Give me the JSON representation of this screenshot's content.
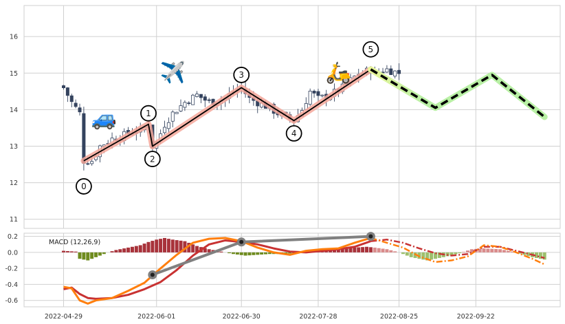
{
  "chart_data": [
    {
      "type": "candlestick",
      "panel": "price",
      "ylim": [
        10.75,
        16.85
      ],
      "y_ticks": [
        11,
        12,
        13,
        14,
        15,
        16
      ],
      "x_tick_labels": [
        "2022-04-29",
        "2022-06-01",
        "2022-06-30",
        "2022-07-28",
        "2022-08-25",
        "2022-09-22"
      ],
      "x_tick_indices": [
        0,
        23,
        44,
        63,
        83,
        102
      ],
      "candles_count": 84,
      "candle_close_anchors": [
        [
          0,
          14.6
        ],
        [
          2,
          14.2
        ],
        [
          4,
          13.9
        ],
        [
          5,
          12.6
        ],
        [
          7,
          12.6
        ],
        [
          9,
          13.0
        ],
        [
          12,
          13.2
        ],
        [
          15,
          13.3
        ],
        [
          17,
          13.4
        ],
        [
          19,
          13.4
        ],
        [
          21,
          13.6
        ],
        [
          22,
          13.0
        ],
        [
          23,
          13.1
        ],
        [
          25,
          13.6
        ],
        [
          27,
          13.9
        ],
        [
          30,
          14.2
        ],
        [
          33,
          14.4
        ],
        [
          36,
          14.2
        ],
        [
          40,
          14.3
        ],
        [
          42,
          14.5
        ],
        [
          44,
          14.6
        ],
        [
          46,
          14.3
        ],
        [
          50,
          14.1
        ],
        [
          53,
          13.9
        ],
        [
          55,
          13.8
        ],
        [
          57,
          13.7
        ],
        [
          59,
          14.0
        ],
        [
          61,
          14.5
        ],
        [
          63,
          14.3
        ],
        [
          66,
          14.4
        ],
        [
          69,
          14.6
        ],
        [
          72,
          14.9
        ],
        [
          74,
          15.0
        ],
        [
          76,
          15.1
        ],
        [
          77,
          15.0
        ],
        [
          80,
          15.1
        ],
        [
          83,
          15.0
        ]
      ],
      "wave_points": [
        {
          "label": "0",
          "x": 5,
          "y": 12.6,
          "label_y": 11.9
        },
        {
          "label": "1",
          "x": 21,
          "y": 13.6,
          "label_y": 13.9
        },
        {
          "label": "2",
          "x": 22,
          "y": 13.0,
          "label_y": 12.65
        },
        {
          "label": "3",
          "x": 44,
          "y": 14.6,
          "label_y": 14.95
        },
        {
          "label": "4",
          "x": 57,
          "y": 13.7,
          "label_y": 13.35
        },
        {
          "label": "5",
          "x": 76,
          "y": 15.1,
          "label_y": 15.65
        }
      ],
      "projection": [
        {
          "x": 76,
          "y": 15.1
        },
        {
          "x": 92,
          "y": 14.05
        },
        {
          "x": 106,
          "y": 14.95
        },
        {
          "x": 119,
          "y": 13.8
        }
      ],
      "emojis": [
        {
          "icon": "car-icon",
          "glyph": "🚙",
          "x": 10,
          "y": 13.8
        },
        {
          "icon": "airplane-icon",
          "glyph": "✈️",
          "x": 27,
          "y": 15.05
        },
        {
          "icon": "scooter-icon",
          "glyph": "🛵",
          "x": 68,
          "y": 15.05
        }
      ],
      "colors": {
        "bear": "#34435e",
        "bull": "#ffffff",
        "trend": "#000000",
        "trend_glow": "#f4a79a",
        "projection": "#000000",
        "projection_glow": "#b9f0a5",
        "projection_glow_start": "#e8f59a",
        "grid": "#d0d0d0"
      }
    },
    {
      "type": "macd",
      "panel": "indicator",
      "title": "MACD (12,26,9)",
      "ylim": [
        -0.68,
        0.24
      ],
      "y_ticks": [
        -0.6,
        -0.4,
        -0.2,
        0.0,
        0.2
      ],
      "y_tick_labels": [
        "-0.6",
        "-0.4",
        "-0.2",
        "0.0",
        "0.2"
      ],
      "macd_line": [
        [
          0,
          -0.43
        ],
        [
          2,
          -0.45
        ],
        [
          4,
          -0.6
        ],
        [
          6,
          -0.64
        ],
        [
          8,
          -0.6
        ],
        [
          12,
          -0.57
        ],
        [
          16,
          -0.48
        ],
        [
          20,
          -0.38
        ],
        [
          24,
          -0.2
        ],
        [
          28,
          -0.03
        ],
        [
          32,
          0.12
        ],
        [
          36,
          0.17
        ],
        [
          40,
          0.18
        ],
        [
          44,
          0.14
        ],
        [
          48,
          0.06
        ],
        [
          52,
          0.0
        ],
        [
          56,
          -0.03
        ],
        [
          60,
          0.02
        ],
        [
          64,
          0.04
        ],
        [
          68,
          0.05
        ],
        [
          72,
          0.12
        ],
        [
          76,
          0.18
        ],
        [
          80,
          0.12
        ],
        [
          84,
          0.06
        ],
        [
          88,
          -0.05
        ],
        [
          92,
          -0.12
        ],
        [
          96,
          -0.1
        ],
        [
          100,
          -0.05
        ],
        [
          104,
          0.09
        ],
        [
          108,
          0.07
        ],
        [
          112,
          0.0
        ],
        [
          116,
          -0.08
        ],
        [
          119,
          -0.15
        ]
      ],
      "signal_line": [
        [
          0,
          -0.46
        ],
        [
          2,
          -0.44
        ],
        [
          4,
          -0.52
        ],
        [
          6,
          -0.57
        ],
        [
          8,
          -0.58
        ],
        [
          12,
          -0.57
        ],
        [
          16,
          -0.53
        ],
        [
          20,
          -0.46
        ],
        [
          24,
          -0.37
        ],
        [
          28,
          -0.22
        ],
        [
          32,
          -0.04
        ],
        [
          36,
          0.1
        ],
        [
          40,
          0.15
        ],
        [
          44,
          0.13
        ],
        [
          48,
          0.1
        ],
        [
          52,
          0.05
        ],
        [
          56,
          0.01
        ],
        [
          60,
          0.0
        ],
        [
          64,
          0.02
        ],
        [
          68,
          0.04
        ],
        [
          72,
          0.07
        ],
        [
          76,
          0.14
        ],
        [
          80,
          0.16
        ],
        [
          84,
          0.12
        ],
        [
          88,
          0.05
        ],
        [
          92,
          -0.01
        ],
        [
          96,
          -0.04
        ],
        [
          100,
          -0.02
        ],
        [
          104,
          0.07
        ],
        [
          108,
          0.07
        ],
        [
          112,
          0.02
        ],
        [
          116,
          -0.03
        ],
        [
          119,
          -0.07
        ]
      ],
      "histogram_anchors": [
        [
          0,
          0.02
        ],
        [
          3,
          0.01
        ],
        [
          4,
          -0.08
        ],
        [
          6,
          -0.1
        ],
        [
          9,
          -0.04
        ],
        [
          11,
          0.0
        ],
        [
          13,
          0.03
        ],
        [
          16,
          0.06
        ],
        [
          19,
          0.09
        ],
        [
          21,
          0.13
        ],
        [
          23,
          0.16
        ],
        [
          25,
          0.18
        ],
        [
          27,
          0.16
        ],
        [
          30,
          0.14
        ],
        [
          33,
          0.08
        ],
        [
          36,
          0.04
        ],
        [
          39,
          0.01
        ],
        [
          42,
          -0.02
        ],
        [
          45,
          -0.04
        ],
        [
          48,
          -0.03
        ],
        [
          51,
          -0.02
        ],
        [
          54,
          -0.02
        ],
        [
          57,
          -0.01
        ],
        [
          60,
          0.02
        ],
        [
          63,
          0.02
        ],
        [
          66,
          0.03
        ],
        [
          69,
          0.04
        ],
        [
          72,
          0.06
        ],
        [
          75,
          0.07
        ],
        [
          77,
          0.06
        ],
        [
          80,
          0.04
        ],
        [
          83,
          0.0
        ],
        [
          86,
          -0.06
        ],
        [
          90,
          -0.1
        ],
        [
          94,
          -0.06
        ],
        [
          98,
          -0.01
        ],
        [
          101,
          0.04
        ],
        [
          104,
          0.05
        ],
        [
          108,
          0.04
        ],
        [
          112,
          0.0
        ],
        [
          116,
          -0.06
        ],
        [
          119,
          -0.09
        ]
      ],
      "gray_connector_points": [
        {
          "x": 22,
          "y": -0.28
        },
        {
          "x": 44,
          "y": 0.13
        },
        {
          "x": 76,
          "y": 0.2
        }
      ],
      "colors": {
        "macd": "#ff7f0e",
        "signal": "#c83232",
        "hist_pos": "#a8323a",
        "hist_neg": "#6e8b1e",
        "hist_pos_proj": "#d98b8b",
        "hist_neg_proj": "#9cbf6d",
        "connector": "#808080"
      }
    }
  ]
}
